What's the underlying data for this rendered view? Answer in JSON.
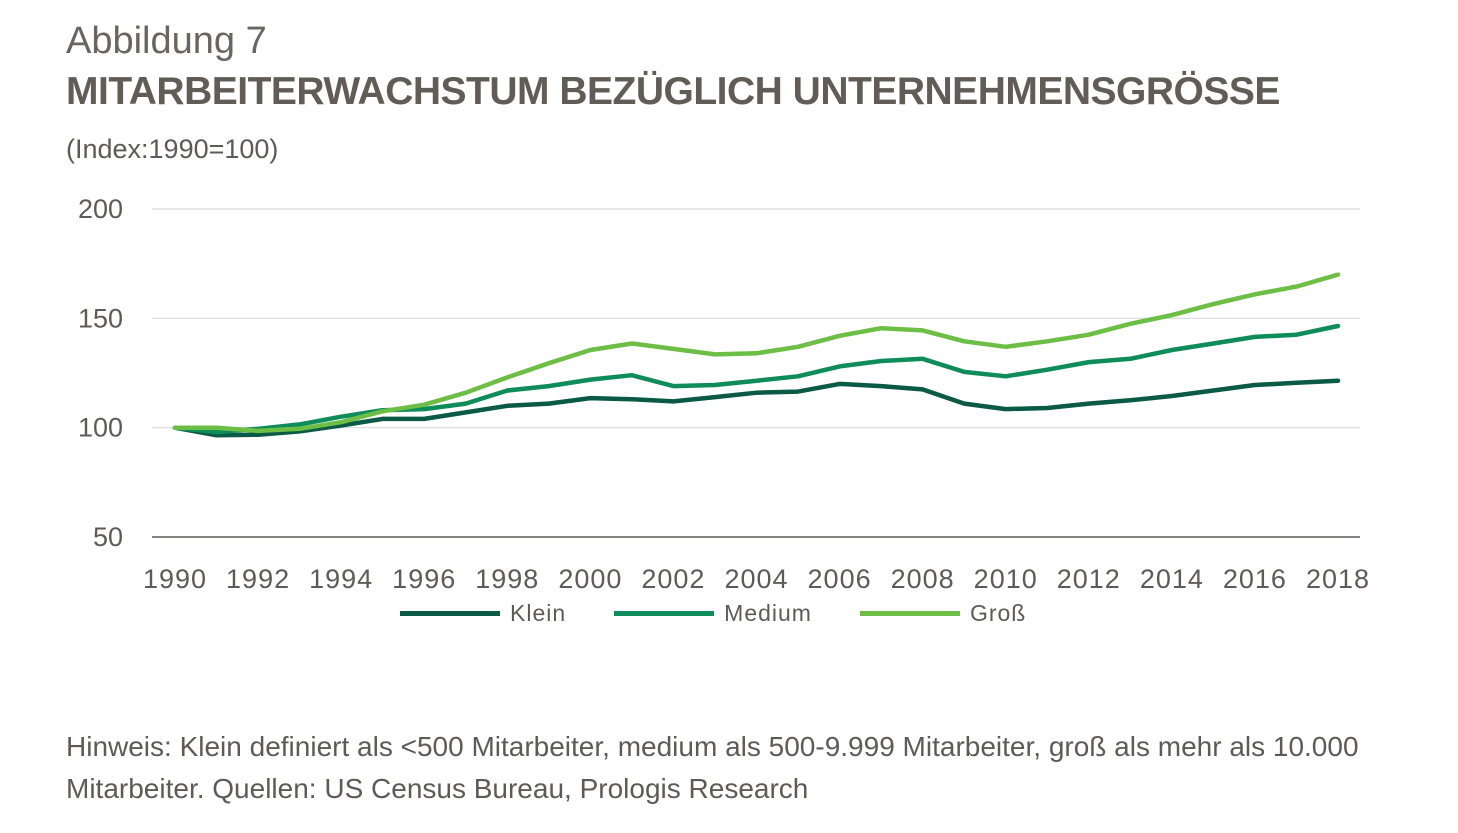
{
  "header": {
    "figure_label": "Abbildung 7",
    "title": "MITARBEITERWACHSTUM BEZÜGLICH UNTERNEHMENSGRÖSSE",
    "subtitle": "(Index:1990=100)"
  },
  "note": "Hinweis: Klein definiert als <500 Mitarbeiter, medium als 500-9.999 Mitarbeiter, groß als mehr als 10.000 Mitarbeiter. Quellen: US Census Bureau, Prologis Research",
  "colors": {
    "klein": "#0a5a45",
    "medium": "#0e8c5a",
    "gross": "#6cbf44",
    "grid": "#d9d9d9",
    "axis": "#5f5a55",
    "text": "#5f5a55"
  },
  "chart_data": {
    "type": "line",
    "title": "MITARBEITERWACHSTUM BEZÜGLICH UNTERNEHMENSGRÖSSE",
    "subtitle": "(Index:1990=100)",
    "xlabel": "",
    "ylabel": "",
    "ylim": [
      50,
      200
    ],
    "yticks": [
      50,
      100,
      150,
      200
    ],
    "xticks": [
      1990,
      1992,
      1994,
      1996,
      1998,
      2000,
      2002,
      2004,
      2006,
      2008,
      2010,
      2012,
      2014,
      2016,
      2018
    ],
    "x": [
      1990,
      1991,
      1992,
      1993,
      1994,
      1995,
      1996,
      1997,
      1998,
      1999,
      2000,
      2001,
      2002,
      2003,
      2004,
      2005,
      2006,
      2007,
      2008,
      2009,
      2010,
      2011,
      2012,
      2013,
      2014,
      2015,
      2016,
      2017,
      2018
    ],
    "grid": "horizontal",
    "legend_position": "bottom",
    "series": [
      {
        "name": "Klein",
        "color": "#0a5a45",
        "values": [
          100,
          96.5,
          96.8,
          98.3,
          101,
          104,
          104,
          107,
          110,
          111,
          113.5,
          113,
          112,
          114,
          116,
          116.5,
          120,
          119,
          117.5,
          111,
          108.5,
          109,
          111,
          112.5,
          114.5,
          117,
          119.5,
          120.5,
          121.5
        ]
      },
      {
        "name": "Medium",
        "color": "#0e8c5a",
        "values": [
          100,
          98,
          99.5,
          101.5,
          105,
          108,
          108.5,
          111,
          117,
          119,
          122,
          124,
          119,
          119.5,
          121.5,
          123.5,
          128,
          130.5,
          131.5,
          125.5,
          123.5,
          126.5,
          130,
          131.5,
          135.5,
          138.5,
          141.5,
          142.5,
          146.5
        ]
      },
      {
        "name": "Groß",
        "color": "#6cbf44",
        "values": [
          100,
          100,
          98.5,
          99.5,
          102.5,
          107.5,
          110.5,
          116,
          123,
          129.5,
          135.5,
          138.5,
          136,
          133.5,
          134,
          137,
          142,
          145.5,
          144.5,
          139.5,
          137,
          139.5,
          142.5,
          147.5,
          151.5,
          156.5,
          161,
          164.5,
          170
        ]
      }
    ]
  }
}
